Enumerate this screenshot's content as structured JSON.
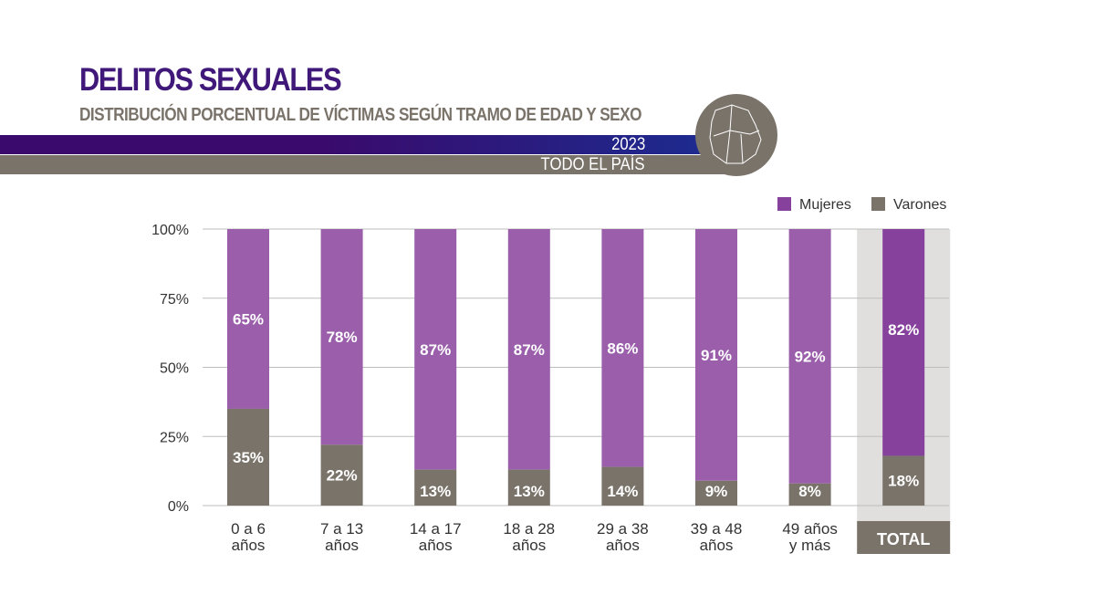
{
  "header": {
    "title": "DELITOS SEXUALES",
    "subtitle": "DISTRIBUCIÓN PORCENTUAL DE VÍCTIMAS SEGÚN TRAMO DE EDAD Y SEXO",
    "year": "2023",
    "region": "TODO EL PAÍS"
  },
  "colors": {
    "mujeres": "#9a5eab",
    "mujeres_total": "#86419d",
    "varones": "#7a736a",
    "total_bg": "#e0dfdd",
    "header_purple": "#3a0a6c"
  },
  "chart_data": {
    "type": "bar",
    "stacked": true,
    "title": "",
    "xlabel": "",
    "ylabel": "",
    "ylim": [
      0,
      100
    ],
    "yticks": [
      "0%",
      "25%",
      "50%",
      "75%",
      "100%"
    ],
    "categories": [
      [
        "0 a 6",
        "años"
      ],
      [
        "7 a 13",
        "años"
      ],
      [
        "14 a 17",
        "años"
      ],
      [
        "18 a 28",
        "años"
      ],
      [
        "29 a 38",
        "años"
      ],
      [
        "39 a 48",
        "años"
      ],
      [
        "49 años",
        "y más"
      ],
      [
        "TOTAL"
      ]
    ],
    "series": [
      {
        "name": "Varones",
        "values": [
          35,
          22,
          13,
          13,
          14,
          9,
          8,
          18
        ],
        "labels": [
          "35%",
          "22%",
          "13%",
          "13%",
          "14%",
          "9%",
          "8%",
          "18%"
        ]
      },
      {
        "name": "Mujeres",
        "values": [
          65,
          78,
          87,
          87,
          86,
          91,
          92,
          82
        ],
        "labels": [
          "65%",
          "78%",
          "87%",
          "87%",
          "86%",
          "91%",
          "92%",
          "82%"
        ]
      }
    ],
    "legend": {
      "position": "top-right",
      "entries": [
        "Mujeres",
        "Varones"
      ]
    },
    "grid": true
  }
}
